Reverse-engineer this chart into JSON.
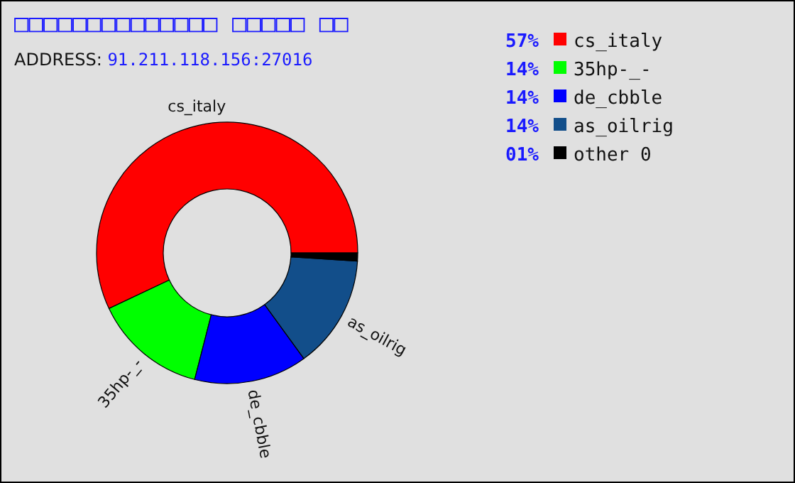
{
  "chart_data": {
    "type": "donut",
    "title": "□□□□□□□□□□□□□□ □□□□□ □□",
    "subtitle": "ADDRESS: 91.211.118.156:27016",
    "categories": [
      "cs_italy",
      "35hp-_-",
      "de_cbble",
      "as_oilrig",
      "other 0"
    ],
    "values": [
      57,
      14,
      14,
      14,
      1
    ],
    "value_labels": [
      "57%",
      "14%",
      "14%",
      "14%",
      "01%"
    ],
    "colors": [
      "#ff0000",
      "#00ff00",
      "#0000ff",
      "#124e8a",
      "#000000"
    ],
    "legend": "right"
  }
}
